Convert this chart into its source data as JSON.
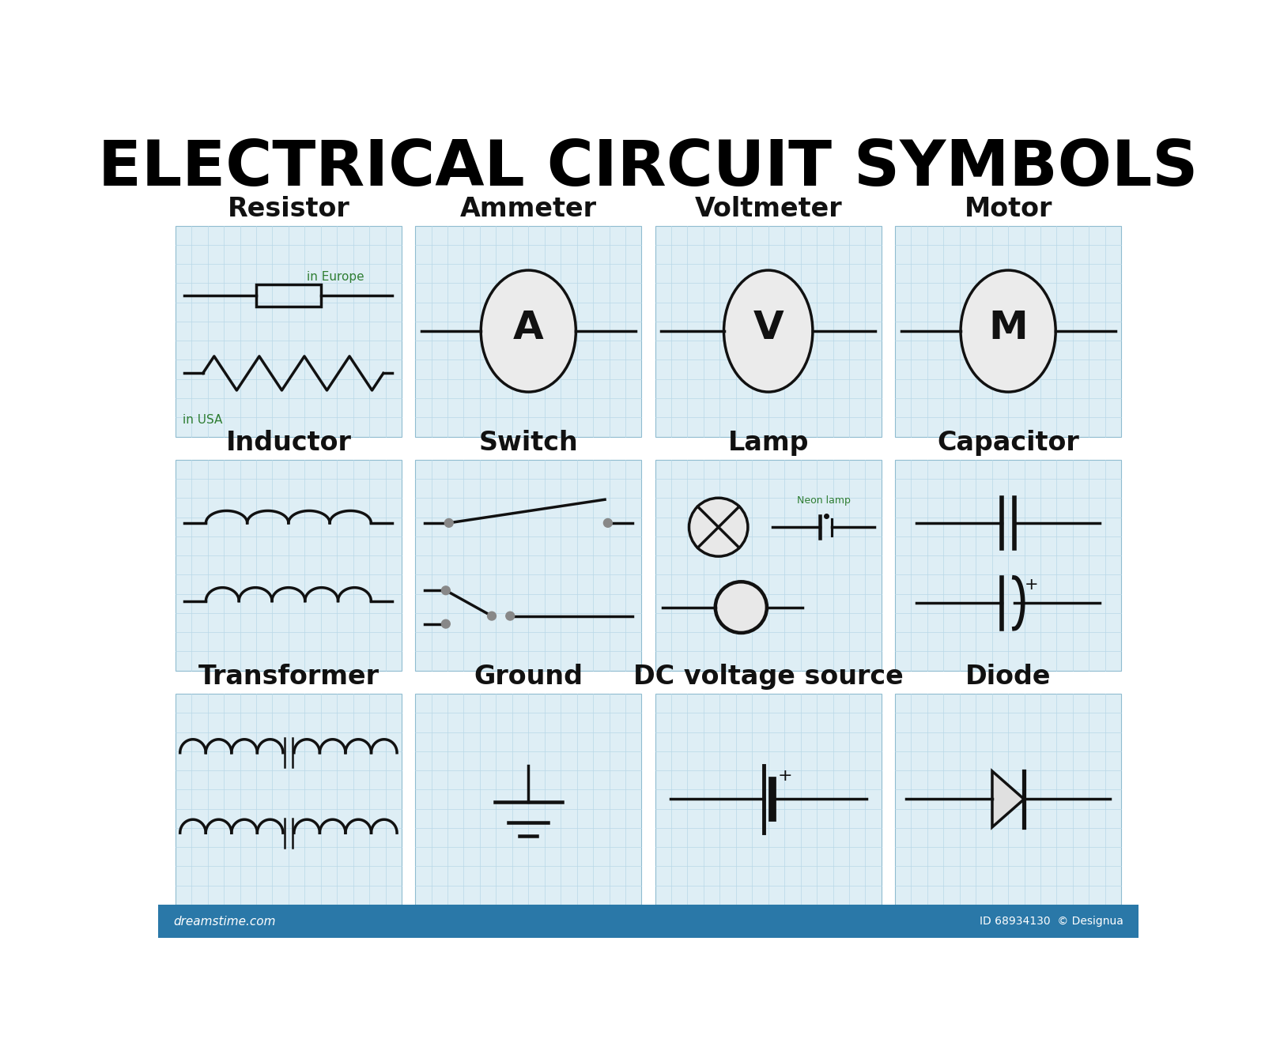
{
  "title": "ELECTRICAL CIRCUIT SYMBOLS",
  "title_fontsize": 58,
  "background_color": "#ffffff",
  "grid_color": "#b8d8e8",
  "box_bg": "#deeef5",
  "symbol_color": "#111111",
  "label_color": "#111111",
  "label_fontsize": 24,
  "annotation_color": "#2e7d32",
  "annotation_fontsize": 11,
  "footer_color": "#2a78a8",
  "symbols": [
    {
      "name": "Resistor",
      "row": 0,
      "col": 0
    },
    {
      "name": "Ammeter",
      "row": 0,
      "col": 1
    },
    {
      "name": "Voltmeter",
      "row": 0,
      "col": 2
    },
    {
      "name": "Motor",
      "row": 0,
      "col": 3
    },
    {
      "name": "Inductor",
      "row": 1,
      "col": 0
    },
    {
      "name": "Switch",
      "row": 1,
      "col": 1
    },
    {
      "name": "Lamp",
      "row": 1,
      "col": 2
    },
    {
      "name": "Capacitor",
      "row": 1,
      "col": 3
    },
    {
      "name": "Transformer",
      "row": 2,
      "col": 0
    },
    {
      "name": "Ground",
      "row": 2,
      "col": 1
    },
    {
      "name": "DC voltage source",
      "row": 2,
      "col": 2
    },
    {
      "name": "Diode",
      "row": 2,
      "col": 3
    }
  ]
}
